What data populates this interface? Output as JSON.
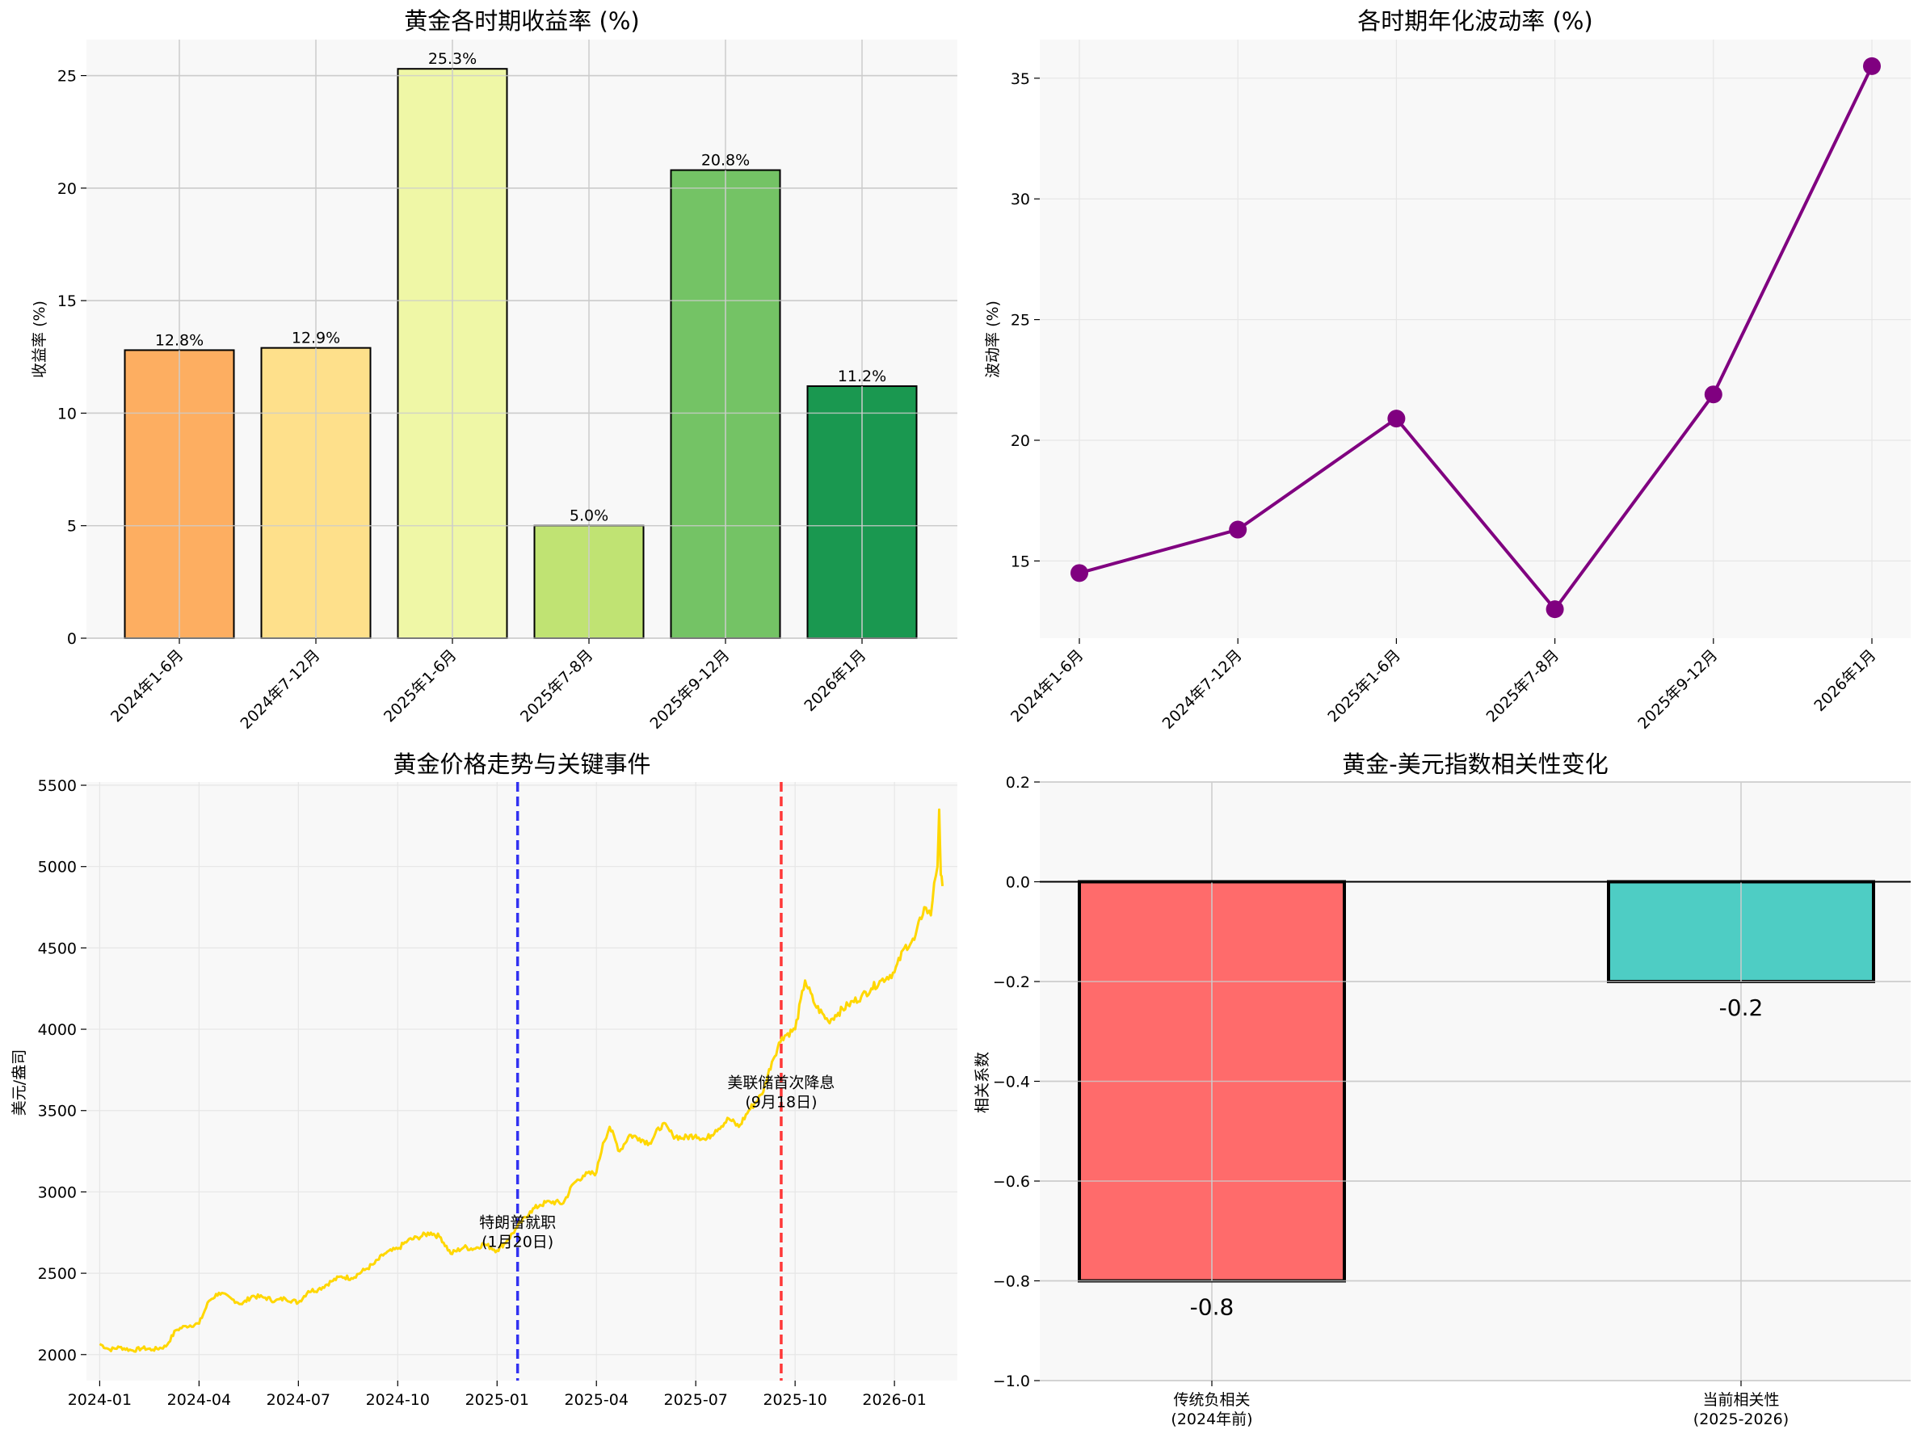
{
  "chart_data": [
    {
      "id": "returns",
      "type": "bar",
      "title": "黄金各时期收益率 (%)",
      "xlabel": "",
      "ylabel": "收益率 (%)",
      "categories": [
        "2024年1-6月",
        "2024年7-12月",
        "2025年1-6月",
        "2025年7-8月",
        "2025年9-12月",
        "2026年1月"
      ],
      "values": [
        12.8,
        12.9,
        25.3,
        5.0,
        20.8,
        11.2
      ],
      "labels": [
        "12.8%",
        "12.9%",
        "25.3%",
        "5.0%",
        "20.8%",
        "11.2%"
      ],
      "colors": [
        "#fdae61",
        "#fee08b",
        "#eff7a6",
        "#c0e373",
        "#74c365",
        "#1a9850"
      ],
      "ylim": [
        0,
        26.6
      ],
      "yticks": [
        0,
        5,
        10,
        15,
        20,
        25
      ],
      "ytick_labels": [
        "0",
        "5",
        "10",
        "15",
        "20",
        "25"
      ],
      "grid": true
    },
    {
      "id": "volatility",
      "type": "line",
      "title": "各时期年化波动率 (%)",
      "xlabel": "",
      "ylabel": "波动率 (%)",
      "categories": [
        "2024年1-6月",
        "2024年7-12月",
        "2025年1-6月",
        "2025年7-8月",
        "2025年9-12月",
        "2026年1月"
      ],
      "values": [
        14.5,
        16.3,
        20.9,
        13.0,
        21.9,
        35.5
      ],
      "color": "#800080",
      "ylim": [
        11.8,
        36.6
      ],
      "yticks": [
        15,
        20,
        25,
        30,
        35
      ],
      "ytick_labels": [
        "15",
        "20",
        "25",
        "30",
        "35"
      ],
      "grid": true
    },
    {
      "id": "price",
      "type": "line",
      "title": "黄金价格走势与关键事件",
      "xlabel": "",
      "ylabel": "美元/盎司",
      "color": "#ffd700",
      "x_start": "2024-01",
      "x_end": "2026-02",
      "xticks": [
        "2024-01",
        "2024-04",
        "2024-07",
        "2024-10",
        "2025-01",
        "2025-04",
        "2025-07",
        "2025-10",
        "2026-01"
      ],
      "xtick_months": [
        0,
        3,
        6,
        9,
        12,
        15,
        18,
        21,
        24
      ],
      "xlim_months": [
        -0.4,
        25.9
      ],
      "ylim": [
        1840,
        5520
      ],
      "yticks": [
        2000,
        2500,
        3000,
        3500,
        4000,
        4500,
        5000,
        5500
      ],
      "ytick_labels": [
        "2000",
        "2500",
        "3000",
        "3500",
        "4000",
        "4500",
        "5000",
        "5500"
      ],
      "series": [
        {
          "name": "黄金价格",
          "x": [
            0,
            0.3,
            0.6,
            1.0,
            1.3,
            1.6,
            2.0,
            2.3,
            2.6,
            3.0,
            3.3,
            3.6,
            4.0,
            4.3,
            4.6,
            5.0,
            5.3,
            5.6,
            6.0,
            6.3,
            6.6,
            7.0,
            7.3,
            7.6,
            8.0,
            8.3,
            8.6,
            9.0,
            9.3,
            9.6,
            10.0,
            10.3,
            10.6,
            11.0,
            11.3,
            11.6,
            12.0,
            12.3,
            12.6,
            13.0,
            13.3,
            13.6,
            14.0,
            14.3,
            14.6,
            15.0,
            15.2,
            15.4,
            15.7,
            16.0,
            16.3,
            16.6,
            17.0,
            17.3,
            17.6,
            18.0,
            18.3,
            18.6,
            19.0,
            19.3,
            19.6,
            20.0,
            20.3,
            20.6,
            21.0,
            21.3,
            21.6,
            22.0,
            22.3,
            22.6,
            23.0,
            23.3,
            23.6,
            24.0,
            24.3,
            24.6,
            24.9,
            25.1,
            25.2,
            25.3,
            25.35,
            25.4,
            25.45
          ],
          "y": [
            2065,
            2030,
            2045,
            2025,
            2040,
            2030,
            2050,
            2150,
            2175,
            2190,
            2330,
            2380,
            2340,
            2310,
            2360,
            2350,
            2330,
            2345,
            2320,
            2390,
            2400,
            2450,
            2480,
            2470,
            2520,
            2560,
            2620,
            2650,
            2700,
            2720,
            2750,
            2720,
            2620,
            2660,
            2650,
            2680,
            2640,
            2700,
            2780,
            2880,
            2920,
            2940,
            2930,
            3050,
            3100,
            3120,
            3300,
            3400,
            3250,
            3350,
            3330,
            3300,
            3420,
            3350,
            3330,
            3350,
            3320,
            3380,
            3450,
            3400,
            3500,
            3600,
            3800,
            3950,
            4000,
            4300,
            4150,
            4050,
            4100,
            4150,
            4200,
            4250,
            4300,
            4350,
            4500,
            4550,
            4750,
            4700,
            4900,
            5000,
            5350,
            4950,
            4880
          ]
        }
      ],
      "events": [
        {
          "label_line1": "特朗普就职",
          "label_line2": "(1月20日)",
          "x_month": 12.62,
          "color": "#1c1cf0",
          "label_y": 2780
        },
        {
          "label_line1": "美联储首次降息",
          "label_line2": "(9月18日)",
          "x_month": 20.58,
          "color": "#ff2222",
          "label_y": 3640
        }
      ],
      "grid": true
    },
    {
      "id": "correlation",
      "type": "bar",
      "title": "黄金-美元指数相关性变化",
      "xlabel": "",
      "ylabel": "相关系数",
      "categories_line1": [
        "传统负相关",
        "当前相关性"
      ],
      "categories_line2": [
        "(2024年前)",
        "(2025-2026)"
      ],
      "values": [
        -0.8,
        -0.2
      ],
      "labels": [
        "-0.8",
        "-0.2"
      ],
      "colors": [
        "#ff6b6b",
        "#4ecdc4"
      ],
      "ylim": [
        -1.0,
        0.2
      ],
      "yticks": [
        -1.0,
        -0.8,
        -0.6,
        -0.4,
        -0.2,
        0.0,
        0.2
      ],
      "ytick_labels": [
        "−1.0",
        "−0.8",
        "−0.6",
        "−0.4",
        "−0.2",
        "0.0",
        "0.2"
      ],
      "grid": true
    }
  ]
}
